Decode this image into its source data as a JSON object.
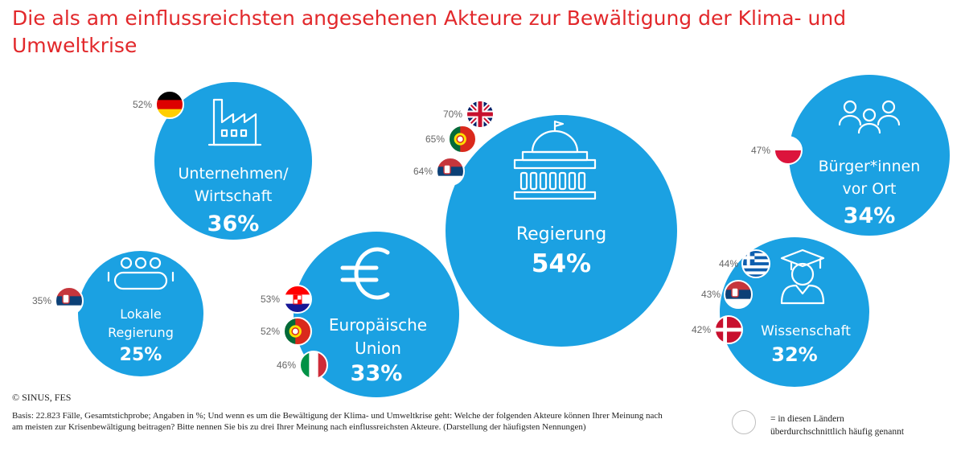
{
  "title": "Die als am einflussreichsten angesehenen Akteure zur Bewältigung der Klima- und Umweltkrise",
  "colors": {
    "bubble": "#1ba1e2",
    "title": "#e2282b",
    "text": "#ffffff"
  },
  "chart_data": {
    "type": "bubble",
    "unit": "%",
    "items": [
      {
        "id": "unternehmen",
        "label_lines": [
          "Unternehmen/",
          "Wirtschaft"
        ],
        "value": 36,
        "value_label": "36%",
        "icon": "factory-icon",
        "countries": [
          {
            "flag": "germany",
            "value": 52,
            "label": "52%"
          }
        ]
      },
      {
        "id": "regierung",
        "label_lines": [
          "Regierung"
        ],
        "value": 54,
        "value_label": "54%",
        "icon": "government-building-icon",
        "countries": [
          {
            "flag": "united-kingdom",
            "value": 70,
            "label": "70%"
          },
          {
            "flag": "portugal",
            "value": 65,
            "label": "65%"
          },
          {
            "flag": "serbia",
            "value": 64,
            "label": "64%"
          }
        ]
      },
      {
        "id": "buerger",
        "label_lines": [
          "Bürger*innen",
          "vor Ort"
        ],
        "value": 34,
        "value_label": "34%",
        "icon": "people-group-icon",
        "countries": [
          {
            "flag": "poland",
            "value": 47,
            "label": "47%"
          }
        ]
      },
      {
        "id": "lokal",
        "label_lines": [
          "Lokale",
          "Regierung"
        ],
        "value": 25,
        "value_label": "25%",
        "icon": "meeting-table-icon",
        "countries": [
          {
            "flag": "serbia",
            "value": 35,
            "label": "35%"
          }
        ]
      },
      {
        "id": "eu",
        "label_lines": [
          "Europäische",
          "Union"
        ],
        "value": 33,
        "value_label": "33%",
        "icon": "euro-icon",
        "countries": [
          {
            "flag": "croatia",
            "value": 53,
            "label": "53%"
          },
          {
            "flag": "portugal",
            "value": 52,
            "label": "52%"
          },
          {
            "flag": "italy",
            "value": 46,
            "label": "46%"
          }
        ]
      },
      {
        "id": "wissenschaft",
        "label_lines": [
          "Wissenschaft"
        ],
        "value": 32,
        "value_label": "32%",
        "icon": "graduate-icon",
        "countries": [
          {
            "flag": "greece",
            "value": 44,
            "label": "44%"
          },
          {
            "flag": "serbia",
            "value": 43,
            "label": "43%"
          },
          {
            "flag": "denmark",
            "value": 42,
            "label": "42%"
          }
        ]
      }
    ]
  },
  "footer": {
    "copyright": "© SINUS, FES",
    "basis": "Basis: 22.823 Fälle, Gesamtstichprobe; Angaben in %; Und wenn es um die Bewältigung der Klima- und Umweltkrise geht: Welche der folgenden Akteure können Ihrer Meinung nach am meisten zur Krisenbewältigung beitragen? Bitte nennen Sie bis zu drei Ihrer Meinung nach einflussreichsten Akteure. (Darstellung der häufigsten Nennungen)",
    "legend_line1": "= in diesen Ländern",
    "legend_line2": "überdurchschnittlich häufig genannt"
  }
}
